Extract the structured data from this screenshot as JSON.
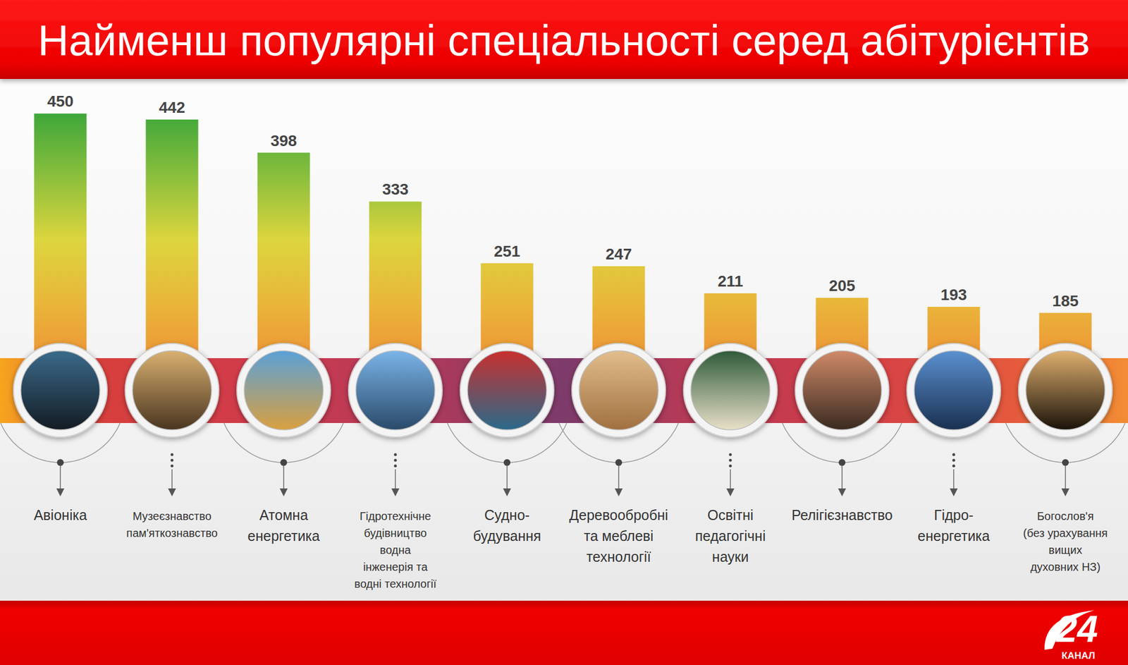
{
  "chart_data": {
    "type": "bar",
    "title": "Найменш популярні спеціальності серед абітурієнтів",
    "categories": [
      "Авіоніка",
      "Музеєзнавство\nпам'яткознавство",
      "Атомна\nенергетика",
      "Гідротехнічне\nбудівництво\nводна\nінженерія та\nводні технології",
      "Судно-\nбудування",
      "Деревообробні\nта меблеві\nтехнології",
      "Освітні\nпедагогічні\nнауки",
      "Релігієзнавство",
      "Гідро-\nенергетика",
      "Богослов'я\n(без урахування\nвищих\nдуховних НЗ)"
    ],
    "values": [
      450,
      442,
      398,
      333,
      251,
      247,
      211,
      205,
      193,
      185
    ],
    "color": "#3ea73a",
    "ylim": [
      100,
      460
    ],
    "data_labels": true,
    "tick_labels": "x",
    "grid": false,
    "annotations": [
      "24",
      "КАНАЛ"
    ]
  }
}
